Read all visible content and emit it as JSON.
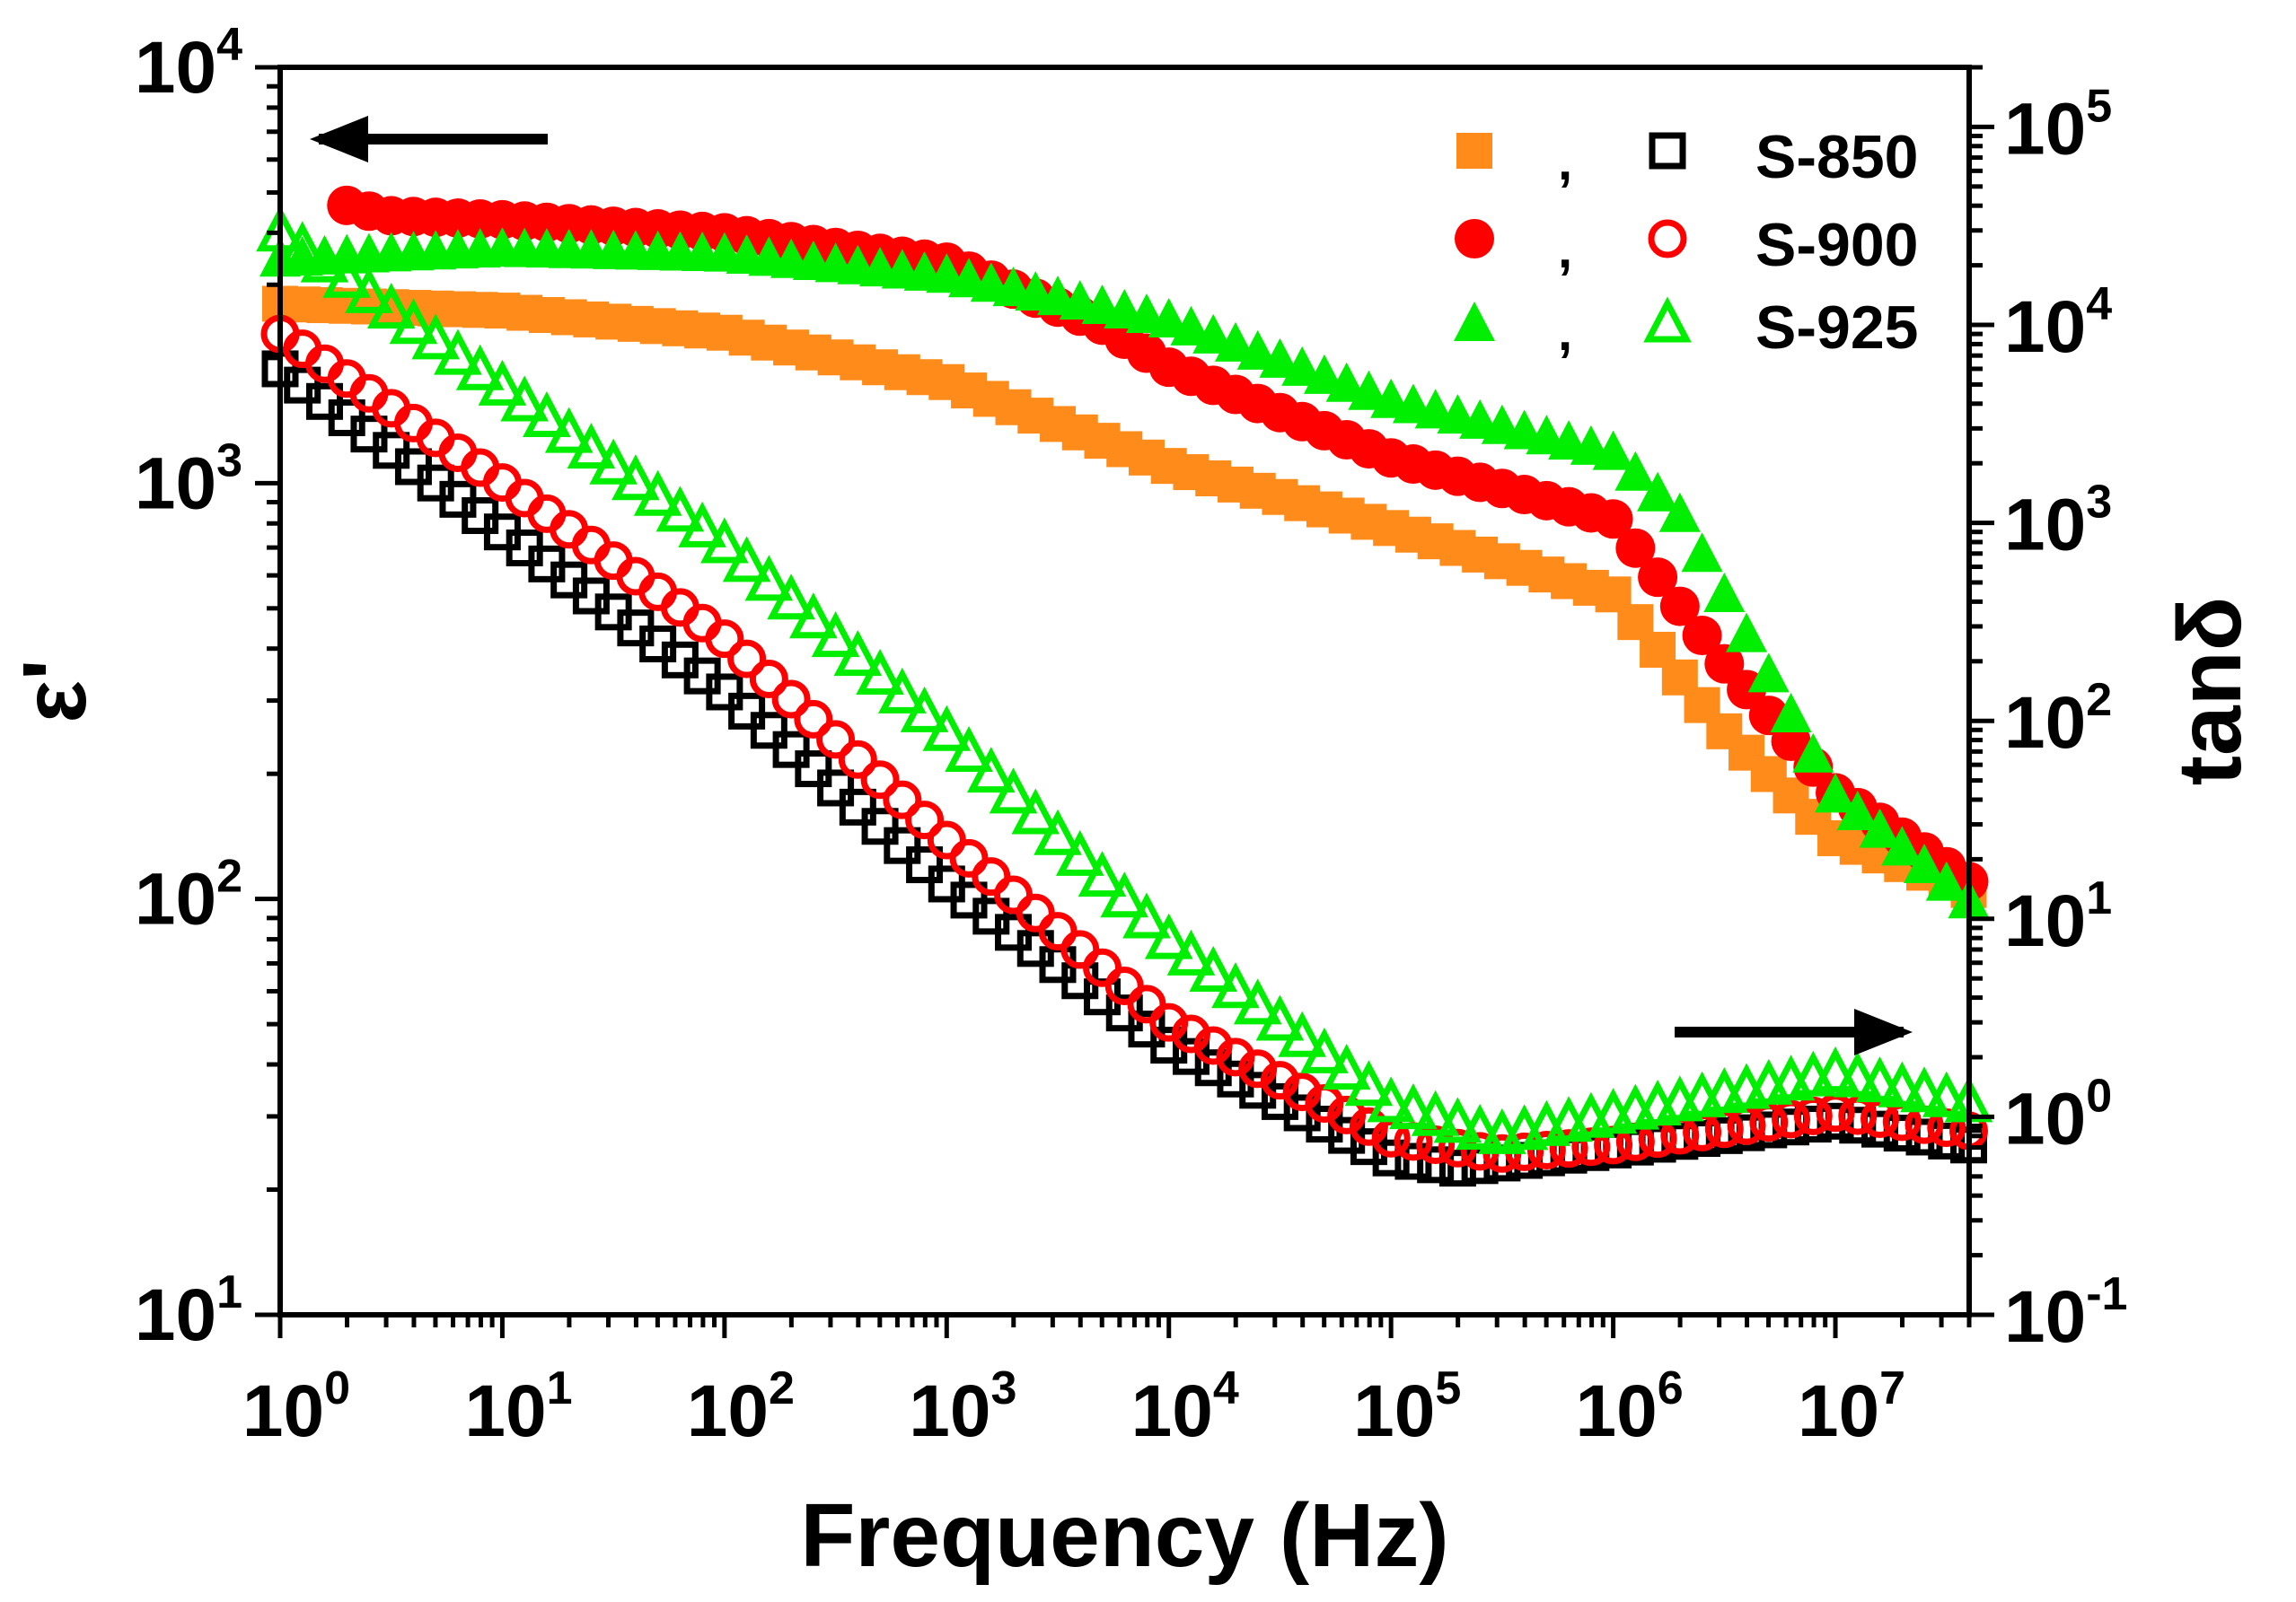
{
  "chart_data": {
    "type": "scatter",
    "xlabel": "Frequency (Hz)",
    "ylabel_left": "ε'",
    "ylabel_right": "tanδ",
    "x_scale": "log",
    "y_left_scale": "log",
    "y_right_scale": "log",
    "xlim": [
      1,
      40000000
    ],
    "ylim_left": [
      10,
      10000
    ],
    "ylim_right": [
      0.1,
      200000
    ],
    "x_ticks": [
      {
        "value": 1,
        "base": "10",
        "exp": "0"
      },
      {
        "value": 10,
        "base": "10",
        "exp": "1"
      },
      {
        "value": 100,
        "base": "10",
        "exp": "2"
      },
      {
        "value": 1000,
        "base": "10",
        "exp": "3"
      },
      {
        "value": 10000,
        "base": "10",
        "exp": "4"
      },
      {
        "value": 100000,
        "base": "10",
        "exp": "5"
      },
      {
        "value": 1000000,
        "base": "10",
        "exp": "6"
      },
      {
        "value": 10000000,
        "base": "10",
        "exp": "7"
      }
    ],
    "y_left_ticks": [
      {
        "value": 10,
        "base": "10",
        "exp": "1"
      },
      {
        "value": 100,
        "base": "10",
        "exp": "2"
      },
      {
        "value": 1000,
        "base": "10",
        "exp": "3"
      },
      {
        "value": 10000,
        "base": "10",
        "exp": "4"
      }
    ],
    "y_right_ticks": [
      {
        "value": 0.1,
        "base": "10",
        "exp": "-1"
      },
      {
        "value": 1,
        "base": "10",
        "exp": "0"
      },
      {
        "value": 10,
        "base": "10",
        "exp": "1"
      },
      {
        "value": 100,
        "base": "10",
        "exp": "2"
      },
      {
        "value": 1000,
        "base": "10",
        "exp": "3"
      },
      {
        "value": 10000,
        "base": "10",
        "exp": "4"
      },
      {
        "value": 100000,
        "base": "10",
        "exp": "5"
      }
    ],
    "legend": {
      "placement": "top-right",
      "separator": ",",
      "entries": [
        {
          "label": "S-850",
          "eps_marker": "filled-square",
          "tan_marker": "open-square",
          "eps_color": "#ff8c1a",
          "tan_color": "#000000"
        },
        {
          "label": "S-900",
          "eps_marker": "filled-circle",
          "tan_marker": "open-circle",
          "eps_color": "#ff0000",
          "tan_color": "#ff0000"
        },
        {
          "label": "S-925",
          "eps_marker": "filled-triangle",
          "tan_marker": "open-triangle",
          "eps_color": "#00ee00",
          "tan_color": "#00ee00"
        }
      ]
    },
    "annotations": [
      {
        "kind": "arrow",
        "direction": "left",
        "meaning": "eps-axis"
      },
      {
        "kind": "arrow",
        "direction": "right",
        "meaning": "tan-axis"
      }
    ],
    "series": [
      {
        "name": "S-850",
        "quantity": "eps",
        "axis": "left",
        "marker": "filled-square",
        "color": "#ff8c1a",
        "points": [
          [
            1,
            2700
          ],
          [
            10,
            2600
          ],
          [
            100,
            2300
          ],
          [
            1000,
            1750
          ],
          [
            10000,
            1100
          ],
          [
            100000,
            780
          ],
          [
            1000000,
            540
          ],
          [
            3000000,
            260
          ],
          [
            10000000,
            140
          ],
          [
            40000000,
            105
          ]
        ]
      },
      {
        "name": "S-900",
        "quantity": "eps",
        "axis": "left",
        "marker": "filled-circle",
        "color": "#ff0000",
        "points": [
          [
            1.6,
            4800
          ],
          [
            3,
            4400
          ],
          [
            10,
            4300
          ],
          [
            100,
            4000
          ],
          [
            1000,
            3400
          ],
          [
            5000,
            2400
          ],
          [
            10000,
            1900
          ],
          [
            100000,
            1150
          ],
          [
            1000000,
            820
          ],
          [
            3000000,
            380
          ],
          [
            10000000,
            180
          ],
          [
            40000000,
            110
          ]
        ]
      },
      {
        "name": "S-925",
        "quantity": "eps",
        "axis": "left",
        "marker": "filled-triangle",
        "color": "#00ee00",
        "points": [
          [
            1,
            3500
          ],
          [
            3,
            3600
          ],
          [
            10,
            3700
          ],
          [
            100,
            3600
          ],
          [
            1000,
            3200
          ],
          [
            10000,
            2500
          ],
          [
            100000,
            1600
          ],
          [
            1000000,
            1200
          ],
          [
            2000000,
            850
          ],
          [
            10000000,
            180
          ],
          [
            40000000,
            100
          ]
        ]
      },
      {
        "name": "S-850",
        "quantity": "tan",
        "axis": "right",
        "marker": "open-square",
        "color": "#000000",
        "points": [
          [
            1,
            6000
          ],
          [
            10,
            900
          ],
          [
            100,
            140
          ],
          [
            1000,
            15
          ],
          [
            10000,
            2.3
          ],
          [
            100000,
            0.62
          ],
          [
            200000,
            0.55
          ],
          [
            1000000,
            0.68
          ],
          [
            10000000,
            0.95
          ],
          [
            40000000,
            0.72
          ]
        ]
      },
      {
        "name": "S-900",
        "quantity": "tan",
        "axis": "right",
        "marker": "open-circle",
        "color": "#ff0000",
        "points": [
          [
            1,
            9000
          ],
          [
            10,
            1600
          ],
          [
            100,
            260
          ],
          [
            1000,
            25
          ],
          [
            10000,
            3.0
          ],
          [
            100000,
            0.78
          ],
          [
            300000,
            0.65
          ],
          [
            1000000,
            0.72
          ],
          [
            10000000,
            1.05
          ],
          [
            40000000,
            0.85
          ]
        ]
      },
      {
        "name": "S-925",
        "quantity": "tan",
        "axis": "right",
        "marker": "open-triangle",
        "color": "#00ee00",
        "points": [
          [
            1,
            30000
          ],
          [
            10,
            5000
          ],
          [
            100,
            800
          ],
          [
            1000,
            90
          ],
          [
            10000,
            8.0
          ],
          [
            100000,
            1.2
          ],
          [
            300000,
            0.82
          ],
          [
            1000000,
            1.05
          ],
          [
            10000000,
            1.7
          ],
          [
            40000000,
            1.2
          ]
        ]
      }
    ]
  }
}
